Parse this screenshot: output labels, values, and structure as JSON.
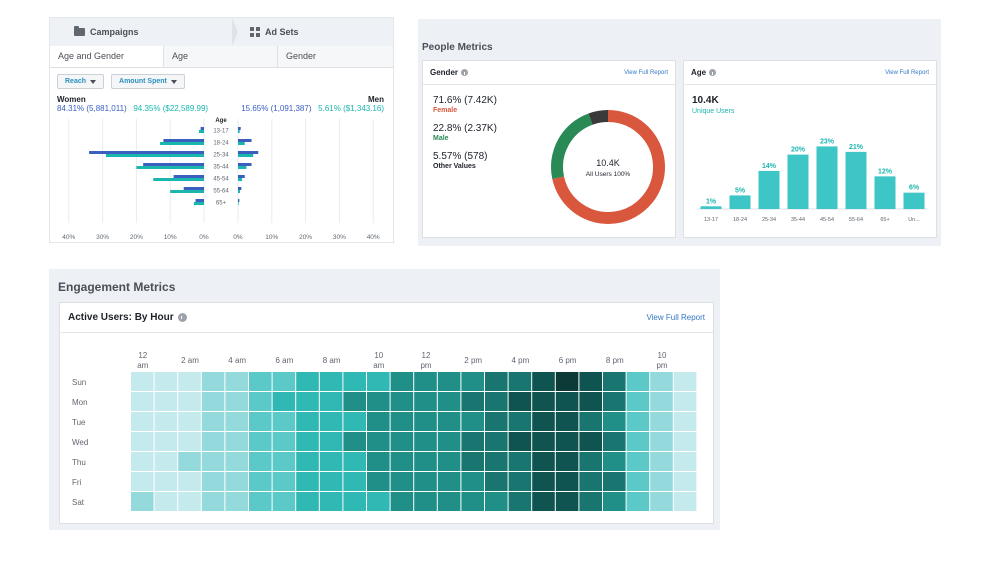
{
  "campaign": {
    "breadcrumb": [
      "Campaigns",
      "Ad Sets"
    ],
    "tabs": [
      "Age and Gender",
      "Age",
      "Gender"
    ],
    "dropdowns": [
      "Reach",
      "Amount Spent"
    ],
    "women": {
      "title": "Women",
      "reach": "84.31% (5,881,011)",
      "spent": "94.35% ($22,589.99)"
    },
    "men": {
      "title": "Men",
      "reach": "15.65% (1,091,387)",
      "spent": "5.61% ($1,343.16)"
    },
    "age_label": "Age"
  },
  "people": {
    "title": "People Metrics",
    "gender_card": {
      "title": "Gender",
      "link": "View Full Report",
      "items": [
        {
          "value": "71.6% (7.42K)",
          "label": "Female",
          "color": "#d9573c"
        },
        {
          "value": "22.8% (2.37K)",
          "label": "Male",
          "color": "#2a8a55"
        },
        {
          "value": "5.57% (578)",
          "label": "Other Values",
          "color": "#3a3a3a"
        }
      ],
      "center_value": "10.4K",
      "center_label": "All Users 100%"
    },
    "age_card": {
      "title": "Age",
      "link": "View Full Report",
      "unique_value": "10.4K",
      "unique_label": "Unique Users"
    }
  },
  "engagement": {
    "title": "Engagement Metrics",
    "card_title": "Active Users: By Hour",
    "link": "View Full Report"
  },
  "colors": {
    "women": "#3a5fbf",
    "men": "#19b6b0",
    "bar": "#3ec5c5",
    "female": "#d9573c",
    "male": "#2a8a55",
    "other": "#3a3a3a"
  },
  "chart_data": [
    {
      "type": "bar",
      "title": "Age and Gender",
      "categories": [
        "13-17",
        "18-24",
        "25-34",
        "35-44",
        "45-54",
        "55-64",
        "65+"
      ],
      "series": [
        {
          "name": "Women Reach",
          "values": [
            1,
            12,
            34,
            18,
            9,
            6,
            2.5
          ]
        },
        {
          "name": "Women Amount Spent",
          "values": [
            1.5,
            13,
            29,
            20,
            15,
            10,
            3
          ]
        },
        {
          "name": "Men Reach",
          "values": [
            0.8,
            4,
            6,
            4,
            2,
            1,
            0.4
          ]
        },
        {
          "name": "Men Amount Spent",
          "values": [
            0.5,
            2,
            4.5,
            2.5,
            1.2,
            0.6,
            0.2
          ]
        }
      ],
      "xticks": [
        "40%",
        "30%",
        "20%",
        "10%",
        "0%",
        "0%",
        "10%",
        "20%",
        "30%",
        "40%"
      ],
      "xlim": [
        0,
        40
      ],
      "grid": true
    },
    {
      "type": "pie",
      "title": "Gender",
      "labels": [
        "Female",
        "Male",
        "Other Values"
      ],
      "values": [
        71.6,
        22.8,
        5.57
      ]
    },
    {
      "type": "bar",
      "title": "Age",
      "categories": [
        "13-17",
        "18-24",
        "25-34",
        "35-44",
        "45-54",
        "55-64",
        "65+",
        "Un..."
      ],
      "values": [
        1,
        5,
        14,
        20,
        23,
        21,
        12,
        6
      ],
      "value_labels": [
        "1%",
        "5%",
        "14%",
        "20%",
        "23%",
        "21%",
        "12%",
        "6%"
      ],
      "ylim": [
        0,
        25
      ]
    },
    {
      "type": "heatmap",
      "title": "Active Users: By Hour",
      "rows": [
        "Sun",
        "Mon",
        "Tue",
        "Wed",
        "Thu",
        "Fri",
        "Sat"
      ],
      "col_labels": [
        "12 am",
        "2 am",
        "4 am",
        "6 am",
        "8 am",
        "10 am",
        "12 pm",
        "2 pm",
        "4 pm",
        "6 pm",
        "8 pm",
        "10 pm"
      ],
      "columns": 24,
      "values": [
        [
          1,
          1,
          1,
          2,
          2,
          3,
          3,
          4,
          4,
          4,
          4,
          5,
          5,
          5,
          5,
          6,
          6,
          7,
          8,
          7,
          6,
          3,
          2,
          1
        ],
        [
          1,
          1,
          1,
          2,
          2,
          3,
          4,
          4,
          4,
          5,
          5,
          5,
          5,
          5,
          6,
          6,
          7,
          7,
          7,
          7,
          6,
          3,
          2,
          1
        ],
        [
          1,
          1,
          1,
          2,
          2,
          3,
          3,
          4,
          4,
          4,
          5,
          5,
          5,
          5,
          5,
          6,
          6,
          7,
          7,
          6,
          5,
          3,
          2,
          1
        ],
        [
          1,
          1,
          1,
          2,
          2,
          3,
          3,
          4,
          4,
          5,
          5,
          5,
          5,
          5,
          6,
          6,
          7,
          7,
          7,
          7,
          6,
          3,
          2,
          1
        ],
        [
          1,
          1,
          2,
          2,
          2,
          3,
          3,
          4,
          4,
          4,
          5,
          5,
          5,
          5,
          6,
          6,
          6,
          7,
          7,
          6,
          5,
          3,
          2,
          1
        ],
        [
          1,
          1,
          1,
          2,
          2,
          3,
          3,
          4,
          4,
          4,
          5,
          5,
          5,
          5,
          5,
          6,
          6,
          7,
          7,
          6,
          6,
          3,
          2,
          1
        ],
        [
          2,
          1,
          1,
          2,
          2,
          3,
          3,
          4,
          4,
          4,
          4,
          5,
          5,
          5,
          5,
          5,
          6,
          7,
          7,
          6,
          5,
          3,
          2,
          1
        ]
      ],
      "scale": [
        1,
        8
      ]
    }
  ]
}
